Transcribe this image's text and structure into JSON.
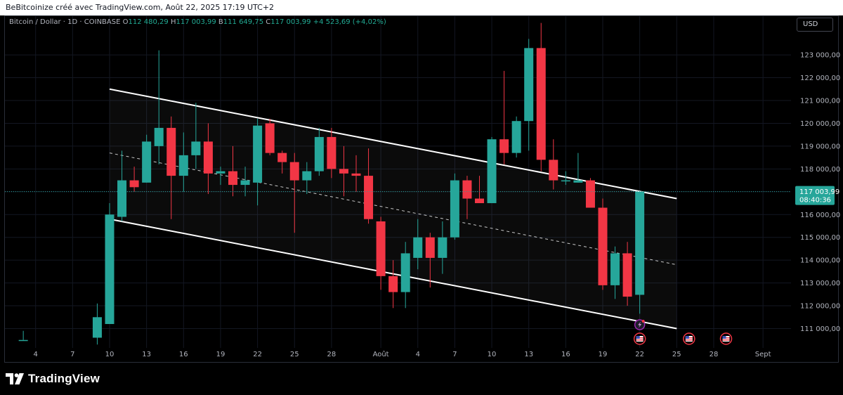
{
  "header": {
    "attribution": "BeBitcoinize créé avec TradingView.com, Août 22, 2025 17:19 UTC+2"
  },
  "legend": {
    "symbol": "Bitcoin / Dollar · 1D · COINBASE",
    "open_label": "O",
    "open": "112 480,29",
    "high_label": "H",
    "high": "117 003,99",
    "low_label": "B",
    "low": "111 649,75",
    "close_label": "C",
    "close": "117 003,99",
    "change": "+4 523,69 (+4,02%)"
  },
  "currency_button": "USD",
  "last_price": {
    "value": "117 003,99",
    "countdown": "08:40:36"
  },
  "footer": {
    "brand": "TradingView"
  },
  "colors": {
    "up": "#26a69a",
    "down": "#f23645",
    "channel": "#ffffff",
    "last_price_tag": "#26a69a",
    "background": "#000000"
  },
  "icons": [
    "flash-icon",
    "us-flag-icon"
  ],
  "chart_data": {
    "type": "candlestick",
    "title": "",
    "xlabel": "",
    "ylabel": "",
    "ylim": [
      110500,
      123800
    ],
    "y_ticks": [
      111000,
      112000,
      113000,
      114000,
      115000,
      116000,
      117000,
      118000,
      119000,
      120000,
      121000,
      122000,
      123000
    ],
    "y_tick_labels": [
      "111 000,00",
      "112 000,00",
      "113 000,00",
      "114 000,00",
      "115 000,00",
      "116 000,00",
      "117 000,00",
      "118 000,00",
      "119 000,00",
      "120 000,00",
      "121 000,00",
      "122 000,00",
      "123 000,00"
    ],
    "x_range": [
      1,
      62
    ],
    "x_ticks": [
      {
        "day": 4,
        "label": "4"
      },
      {
        "day": 7,
        "label": "7"
      },
      {
        "day": 10,
        "label": "10"
      },
      {
        "day": 13,
        "label": "13"
      },
      {
        "day": 16,
        "label": "16"
      },
      {
        "day": 19,
        "label": "19"
      },
      {
        "day": 22,
        "label": "22"
      },
      {
        "day": 25,
        "label": "25"
      },
      {
        "day": 28,
        "label": "28"
      },
      {
        "day": 32,
        "label": "Août"
      },
      {
        "day": 35,
        "label": "4"
      },
      {
        "day": 38,
        "label": "7"
      },
      {
        "day": 41,
        "label": "10"
      },
      {
        "day": 44,
        "label": "13"
      },
      {
        "day": 47,
        "label": "16"
      },
      {
        "day": 50,
        "label": "19"
      },
      {
        "day": 53,
        "label": "22"
      },
      {
        "day": 56,
        "label": "25"
      },
      {
        "day": 59,
        "label": "28"
      },
      {
        "day": 63,
        "label": "Sept"
      }
    ],
    "day_note": "day index counts July 1 as 1 (Août 1 = 32)",
    "candles": [
      {
        "day": 3,
        "o": 110500,
        "h": 110900,
        "l": 110500,
        "c": 110500
      },
      {
        "day": 9,
        "o": 110600,
        "h": 112100,
        "l": 110300,
        "c": 111500
      },
      {
        "day": 10,
        "o": 111200,
        "h": 116500,
        "l": 111200,
        "c": 116000
      },
      {
        "day": 11,
        "o": 115900,
        "h": 118800,
        "l": 115700,
        "c": 117500
      },
      {
        "day": 12,
        "o": 117500,
        "h": 118100,
        "l": 117000,
        "c": 117200
      },
      {
        "day": 13,
        "o": 117400,
        "h": 119500,
        "l": 117400,
        "c": 119200
      },
      {
        "day": 14,
        "o": 119000,
        "h": 123200,
        "l": 118200,
        "c": 119800
      },
      {
        "day": 15,
        "o": 119800,
        "h": 120300,
        "l": 115800,
        "c": 117700
      },
      {
        "day": 16,
        "o": 117700,
        "h": 119600,
        "l": 117000,
        "c": 118600
      },
      {
        "day": 17,
        "o": 118600,
        "h": 120900,
        "l": 118000,
        "c": 119200
      },
      {
        "day": 18,
        "o": 119200,
        "h": 120000,
        "l": 116900,
        "c": 117800
      },
      {
        "day": 19,
        "o": 117800,
        "h": 118100,
        "l": 117300,
        "c": 117900
      },
      {
        "day": 20,
        "o": 117900,
        "h": 119000,
        "l": 116800,
        "c": 117300
      },
      {
        "day": 21,
        "o": 117300,
        "h": 118100,
        "l": 116800,
        "c": 117500
      },
      {
        "day": 22,
        "o": 117400,
        "h": 120200,
        "l": 116400,
        "c": 119900
      },
      {
        "day": 23,
        "o": 120000,
        "h": 120200,
        "l": 118600,
        "c": 118700
      },
      {
        "day": 24,
        "o": 118700,
        "h": 118800,
        "l": 117800,
        "c": 118300
      },
      {
        "day": 25,
        "o": 118300,
        "h": 118700,
        "l": 115200,
        "c": 117500
      },
      {
        "day": 26,
        "o": 117500,
        "h": 118300,
        "l": 116900,
        "c": 117900
      },
      {
        "day": 27,
        "o": 117900,
        "h": 119800,
        "l": 117700,
        "c": 119400
      },
      {
        "day": 28,
        "o": 119400,
        "h": 119800,
        "l": 117600,
        "c": 118000
      },
      {
        "day": 29,
        "o": 118000,
        "h": 119000,
        "l": 116800,
        "c": 117800
      },
      {
        "day": 30,
        "o": 117800,
        "h": 118600,
        "l": 117000,
        "c": 117700
      },
      {
        "day": 31,
        "o": 117700,
        "h": 118900,
        "l": 115600,
        "c": 115800
      },
      {
        "day": 32,
        "o": 115700,
        "h": 115900,
        "l": 112700,
        "c": 113300
      },
      {
        "day": 33,
        "o": 113300,
        "h": 114000,
        "l": 111900,
        "c": 112600
      },
      {
        "day": 34,
        "o": 112600,
        "h": 114800,
        "l": 111900,
        "c": 114300
      },
      {
        "day": 35,
        "o": 114100,
        "h": 115800,
        "l": 113600,
        "c": 115000
      },
      {
        "day": 36,
        "o": 115000,
        "h": 115200,
        "l": 112800,
        "c": 114100
      },
      {
        "day": 37,
        "o": 114100,
        "h": 115700,
        "l": 113400,
        "c": 115000
      },
      {
        "day": 38,
        "o": 115000,
        "h": 117800,
        "l": 114900,
        "c": 117500
      },
      {
        "day": 39,
        "o": 117500,
        "h": 117700,
        "l": 115800,
        "c": 116700
      },
      {
        "day": 40,
        "o": 116700,
        "h": 117700,
        "l": 116500,
        "c": 116500
      },
      {
        "day": 41,
        "o": 116500,
        "h": 119400,
        "l": 116500,
        "c": 119300
      },
      {
        "day": 42,
        "o": 119300,
        "h": 122300,
        "l": 118200,
        "c": 118700
      },
      {
        "day": 43,
        "o": 118700,
        "h": 120300,
        "l": 118500,
        "c": 120100
      },
      {
        "day": 44,
        "o": 120100,
        "h": 123700,
        "l": 118800,
        "c": 123300
      },
      {
        "day": 45,
        "o": 123300,
        "h": 124400,
        "l": 117900,
        "c": 118400
      },
      {
        "day": 46,
        "o": 118400,
        "h": 119300,
        "l": 117100,
        "c": 117500
      },
      {
        "day": 47,
        "o": 117500,
        "h": 117900,
        "l": 117300,
        "c": 117500
      },
      {
        "day": 48,
        "o": 117400,
        "h": 118700,
        "l": 117400,
        "c": 117500
      },
      {
        "day": 49,
        "o": 117500,
        "h": 117600,
        "l": 116300,
        "c": 116300
      },
      {
        "day": 50,
        "o": 116300,
        "h": 116700,
        "l": 112700,
        "c": 112900
      },
      {
        "day": 51,
        "o": 112900,
        "h": 114600,
        "l": 112300,
        "c": 114300
      },
      {
        "day": 52,
        "o": 114300,
        "h": 114800,
        "l": 112000,
        "c": 112400
      },
      {
        "day": 53,
        "o": 112480.29,
        "h": 117003.99,
        "l": 111649.75,
        "c": 117003.99
      }
    ],
    "channel": {
      "upper": {
        "from": {
          "day": 10,
          "price": 121500
        },
        "to": {
          "day": 56,
          "price": 116700
        }
      },
      "middle": {
        "from": {
          "day": 10,
          "price": 118700
        },
        "to": {
          "day": 56,
          "price": 113800
        }
      },
      "lower": {
        "from": {
          "day": 10,
          "price": 115800
        },
        "to": {
          "day": 56,
          "price": 111000
        }
      }
    },
    "last_price_line": 117003.99,
    "events": [
      {
        "day": 53,
        "type": "flash",
        "price_anchor": "below-axis"
      },
      {
        "day": 53,
        "type": "us-flag"
      },
      {
        "day": 57,
        "type": "us-flag"
      },
      {
        "day": 60,
        "type": "us-flag"
      }
    ],
    "grid": true,
    "legend_position": "top-left"
  }
}
